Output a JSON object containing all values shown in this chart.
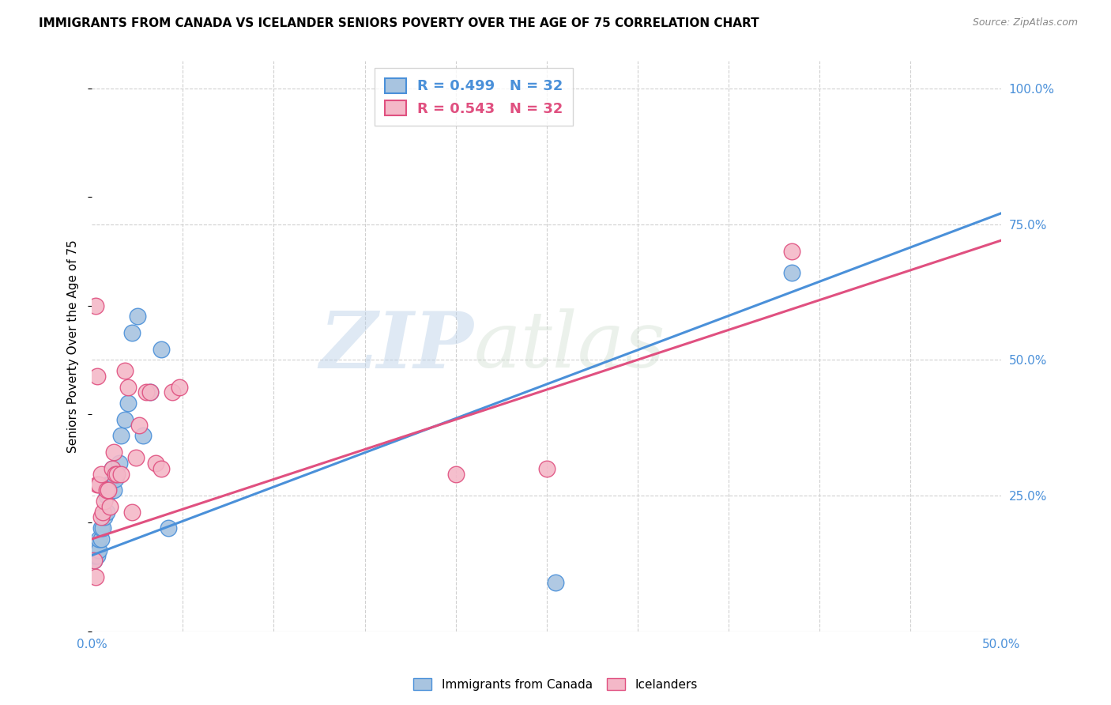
{
  "title": "IMMIGRANTS FROM CANADA VS ICELANDER SENIORS POVERTY OVER THE AGE OF 75 CORRELATION CHART",
  "source": "Source: ZipAtlas.com",
  "ylabel": "Seniors Poverty Over the Age of 75",
  "xlim": [
    0.0,
    0.5
  ],
  "ylim": [
    0.0,
    1.05
  ],
  "xticks": [
    0.0,
    0.05,
    0.1,
    0.15,
    0.2,
    0.25,
    0.3,
    0.35,
    0.4,
    0.45,
    0.5
  ],
  "ytick_vals": [
    0.0,
    0.25,
    0.5,
    0.75,
    1.0
  ],
  "ytick_labels": [
    "",
    "25.0%",
    "50.0%",
    "75.0%",
    "100.0%"
  ],
  "xtick_labels": [
    "0.0%",
    "",
    "",
    "",
    "",
    "",
    "",
    "",
    "",
    "",
    "50.0%"
  ],
  "canada_R": "0.499",
  "canada_N": "32",
  "iceland_R": "0.543",
  "iceland_N": "32",
  "canada_color": "#a8c4e0",
  "canada_line_color": "#4a90d9",
  "iceland_color": "#f4b8c8",
  "iceland_line_color": "#e05080",
  "watermark_zip": "ZIP",
  "watermark_atlas": "atlas",
  "canada_scatter_x": [
    0.001,
    0.001,
    0.002,
    0.002,
    0.003,
    0.003,
    0.003,
    0.004,
    0.004,
    0.005,
    0.005,
    0.006,
    0.007,
    0.008,
    0.008,
    0.009,
    0.01,
    0.011,
    0.012,
    0.013,
    0.015,
    0.016,
    0.018,
    0.02,
    0.022,
    0.025,
    0.028,
    0.032,
    0.038,
    0.042,
    0.385,
    0.255
  ],
  "canada_scatter_y": [
    0.13,
    0.14,
    0.14,
    0.15,
    0.15,
    0.14,
    0.16,
    0.15,
    0.17,
    0.17,
    0.19,
    0.19,
    0.21,
    0.22,
    0.25,
    0.27,
    0.27,
    0.3,
    0.26,
    0.28,
    0.31,
    0.36,
    0.39,
    0.42,
    0.55,
    0.58,
    0.36,
    0.44,
    0.52,
    0.19,
    0.66,
    0.09
  ],
  "iceland_scatter_x": [
    0.001,
    0.002,
    0.002,
    0.003,
    0.004,
    0.005,
    0.005,
    0.006,
    0.007,
    0.008,
    0.009,
    0.01,
    0.011,
    0.012,
    0.013,
    0.014,
    0.016,
    0.018,
    0.02,
    0.022,
    0.024,
    0.026,
    0.03,
    0.032,
    0.035,
    0.038,
    0.044,
    0.048,
    0.2,
    0.25,
    0.385,
    0.003
  ],
  "iceland_scatter_y": [
    0.13,
    0.1,
    0.6,
    0.27,
    0.27,
    0.29,
    0.21,
    0.22,
    0.24,
    0.26,
    0.26,
    0.23,
    0.3,
    0.33,
    0.29,
    0.29,
    0.29,
    0.48,
    0.45,
    0.22,
    0.32,
    0.38,
    0.44,
    0.44,
    0.31,
    0.3,
    0.44,
    0.45,
    0.29,
    0.3,
    0.7,
    0.47
  ],
  "canada_line_x": [
    0.0,
    0.5
  ],
  "canada_line_y": [
    0.14,
    0.77
  ],
  "iceland_line_x": [
    0.0,
    0.5
  ],
  "iceland_line_y": [
    0.17,
    0.72
  ]
}
